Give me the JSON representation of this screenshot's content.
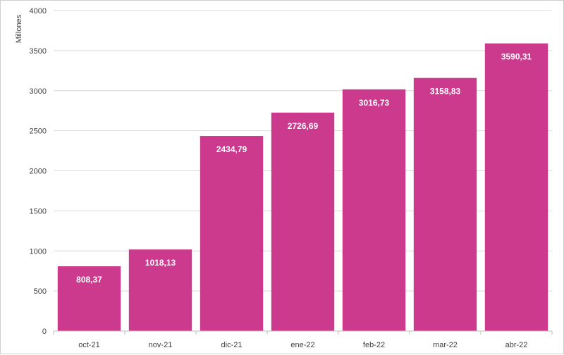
{
  "chart_data": {
    "type": "bar",
    "title": "",
    "xlabel": "",
    "ylabel": "Millones",
    "categories": [
      "oct-21",
      "nov-21",
      "dic-21",
      "ene-22",
      "feb-22",
      "mar-22",
      "abr-22"
    ],
    "values": [
      808.37,
      1018.13,
      2434.79,
      2726.69,
      3016.73,
      3158.83,
      3590.31
    ],
    "data_labels": [
      "808,37",
      "1018,13",
      "2434,79",
      "2726,69",
      "3016,73",
      "3158,83",
      "3590,31"
    ],
    "yticks": [
      0,
      500,
      1000,
      1500,
      2000,
      2500,
      3000,
      3500,
      4000
    ],
    "ylim": [
      0,
      4000
    ],
    "grid": true,
    "colors": {
      "bar": "#cc3a8e",
      "grid": "#d9d9d9",
      "axis": "#bfbfbf"
    }
  }
}
